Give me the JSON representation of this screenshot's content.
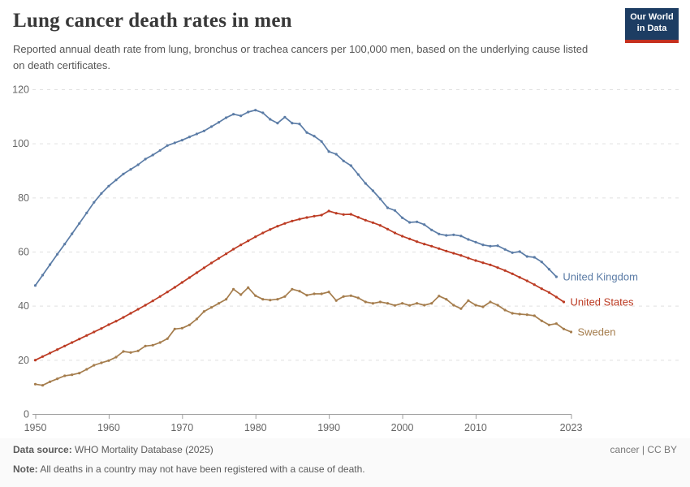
{
  "header": {
    "title": "Lung cancer death rates in men",
    "subtitle": "Reported annual death rate from lung, bronchus or trachea cancers per 100,000 men, based on the underlying cause listed on death certificates.",
    "logo": {
      "line1": "Our World",
      "line2": "in Data"
    }
  },
  "footer": {
    "source_label": "Data source:",
    "source_text": " WHO Mortality Database (2025)",
    "note_label": "Note:",
    "note_text": " All deaths in a country may not have been registered with a cause of death.",
    "license": "cancer | CC BY"
  },
  "chart_data": {
    "type": "line",
    "title": "Lung cancer death rates in men",
    "xlabel": "",
    "ylabel": "",
    "xlim": [
      1950,
      2023
    ],
    "ylim": [
      0,
      120
    ],
    "x_ticks": [
      1950,
      1960,
      1970,
      1980,
      1990,
      2000,
      2010,
      2023
    ],
    "y_ticks": [
      0,
      20,
      40,
      60,
      80,
      100,
      120
    ],
    "grid": true,
    "legend_position": "end-of-line-labels",
    "colors": {
      "grid": "#e0e0e0",
      "axis": "#9e9e9e",
      "tick_text": "#666666"
    },
    "series": [
      {
        "name": "United Kingdom",
        "color": "#5b7ca6",
        "start_year": 1950,
        "end_year": 2021,
        "values": [
          47.5,
          51.3,
          55.2,
          59.0,
          62.8,
          66.6,
          70.4,
          74.3,
          78.2,
          81.5,
          84.2,
          86.5,
          88.7,
          90.4,
          92.1,
          94.2,
          95.7,
          97.4,
          99.2,
          100.2,
          101.2,
          102.4,
          103.5,
          104.6,
          106.2,
          107.8,
          109.5,
          110.8,
          110.2,
          111.6,
          112.3,
          111.3,
          108.9,
          107.5,
          109.7,
          107.5,
          107.2,
          104.0,
          102.7,
          100.7,
          97.0,
          96.0,
          93.5,
          91.8,
          88.5,
          85.2,
          82.5,
          79.5,
          76.2,
          75.2,
          72.5,
          70.8,
          71.0,
          70.0,
          68.0,
          66.5,
          66.0,
          66.2,
          65.8,
          64.5,
          63.5,
          62.5,
          62.0,
          62.2,
          60.8,
          59.6,
          60.0,
          58.2,
          57.9,
          56.2,
          53.5,
          50.7
        ]
      },
      {
        "name": "United States",
        "color": "#bc3b23",
        "start_year": 1950,
        "end_year": 2022,
        "values": [
          19.9,
          21.2,
          22.5,
          23.8,
          25.1,
          26.4,
          27.7,
          29.0,
          30.3,
          31.6,
          33.0,
          34.3,
          35.7,
          37.2,
          38.7,
          40.2,
          41.8,
          43.4,
          45.1,
          46.8,
          48.6,
          50.4,
          52.2,
          54.0,
          55.8,
          57.5,
          59.2,
          60.9,
          62.5,
          64.0,
          65.5,
          66.9,
          68.2,
          69.4,
          70.4,
          71.3,
          72.0,
          72.6,
          73.1,
          73.5,
          75.0,
          74.2,
          73.7,
          73.8,
          72.7,
          71.6,
          70.7,
          69.7,
          68.3,
          66.9,
          65.7,
          64.7,
          63.7,
          62.8,
          62.0,
          61.1,
          60.2,
          59.4,
          58.6,
          57.6,
          56.7,
          55.9,
          55.1,
          54.1,
          53.0,
          51.8,
          50.5,
          49.2,
          47.8,
          46.3,
          44.9,
          43.2,
          41.4
        ]
      },
      {
        "name": "Sweden",
        "color": "#a57d4d",
        "start_year": 1950,
        "end_year": 2023,
        "values": [
          11.0,
          10.6,
          11.9,
          13.0,
          14.1,
          14.5,
          15.1,
          16.5,
          18.0,
          18.9,
          19.7,
          21.0,
          23.1,
          22.7,
          23.3,
          25.1,
          25.4,
          26.4,
          27.8,
          31.4,
          31.7,
          32.9,
          35.1,
          37.9,
          39.4,
          40.9,
          42.4,
          46.1,
          44.1,
          46.7,
          43.7,
          42.4,
          42.1,
          42.4,
          43.4,
          46.1,
          45.4,
          43.9,
          44.4,
          44.4,
          45.1,
          41.9,
          43.4,
          43.7,
          42.9,
          41.4,
          40.9,
          41.4,
          40.9,
          40.1,
          40.9,
          40.1,
          40.9,
          40.2,
          40.9,
          43.6,
          42.4,
          40.2,
          38.9,
          41.9,
          40.2,
          39.6,
          41.4,
          40.2,
          38.4,
          37.2,
          36.9,
          36.7,
          36.3,
          34.4,
          32.9,
          33.4,
          31.4,
          30.3
        ]
      }
    ]
  }
}
